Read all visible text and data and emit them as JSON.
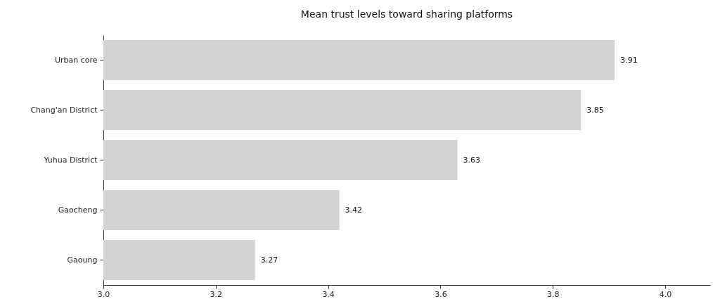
{
  "chart_data": {
    "type": "bar",
    "orientation": "horizontal",
    "title": "Mean trust levels toward sharing platforms",
    "categories": [
      "Urban core",
      "Chang'an District",
      "Yuhua District",
      "Gaocheng",
      "Gaoung"
    ],
    "values": [
      3.91,
      3.85,
      3.63,
      3.42,
      3.27
    ],
    "color": "#d3d3d3",
    "xlim": [
      3.0,
      4.08
    ],
    "xticks": [
      {
        "value": 3.0,
        "label": "3.0"
      },
      3.2,
      3.4,
      3.6,
      3.8,
      {
        "value": 4.0,
        "label": "4.0"
      }
    ],
    "data_labels": true
  }
}
